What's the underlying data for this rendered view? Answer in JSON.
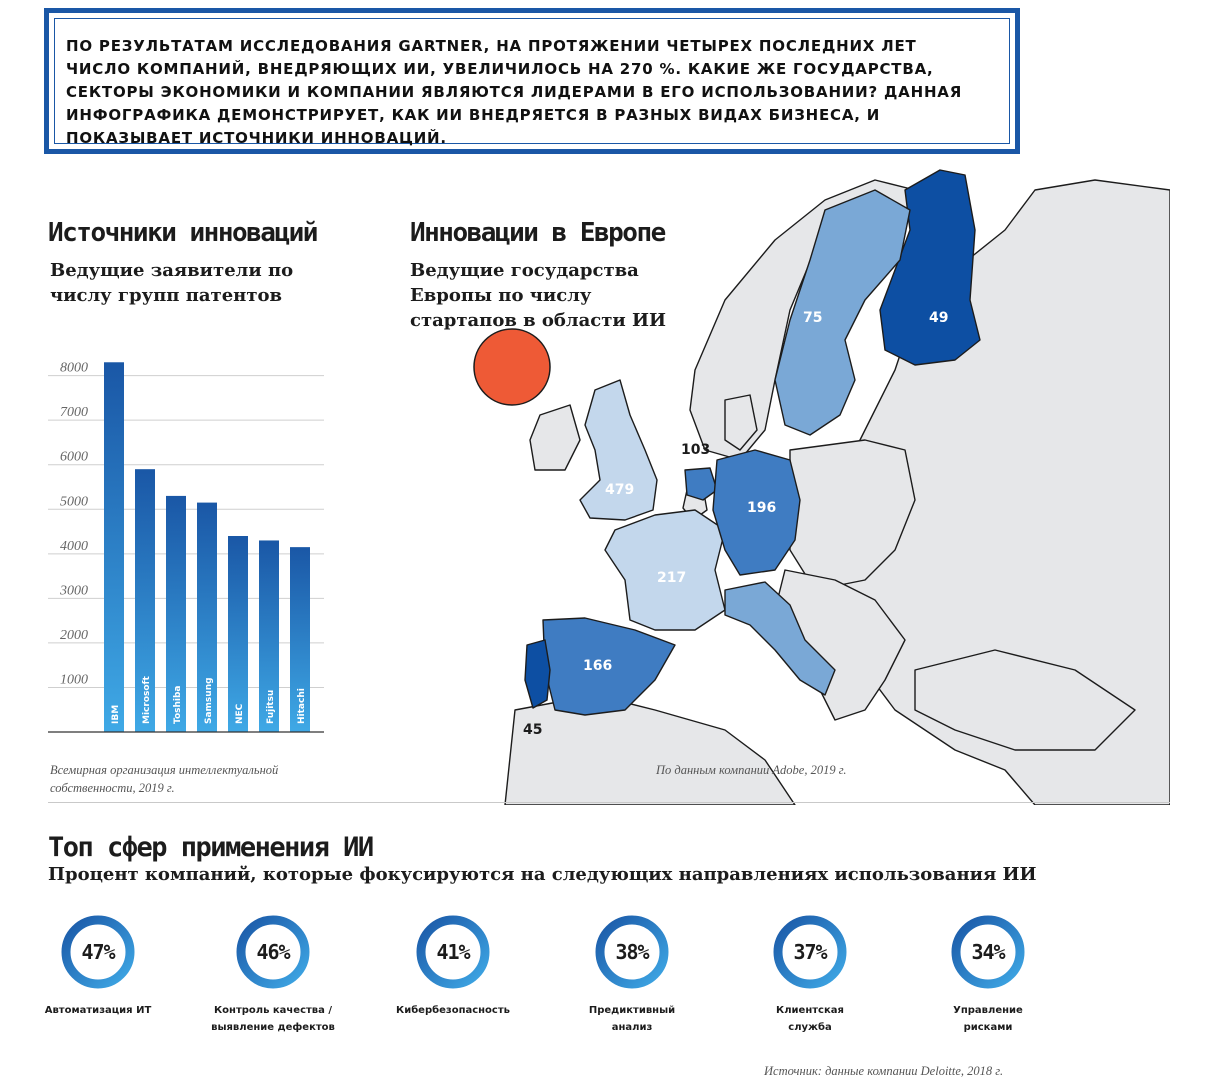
{
  "intro": {
    "text": "ПО РЕЗУЛЬТАТАМ ИССЛЕДОВАНИЯ GARTNER, НА ПРОТЯЖЕНИИ ЧЕТЫРЕХ ПОСЛЕДНИХ ЛЕТ ЧИСЛО КОМПАНИЙ, ВНЕДРЯЮЩИХ ИИ, УВЕЛИЧИЛОСЬ НА 270 %. КАКИЕ ЖЕ ГОСУДАРСТВА, СЕКТОРЫ ЭКОНОМИКИ И КОМПАНИИ ЯВЛЯЮТСЯ ЛИДЕРАМИ В ЕГО ИСПОЛЬЗОВАНИИ? ДАННАЯ ИНФОГРАФИКА ДЕМОНСТРИРУЕТ, КАК ИИ ВНЕДРЯЕТСЯ В РАЗНЫХ ВИДАХ БИЗНЕСА, И ПОКАЗЫВАЕТ ИСТОЧНИКИ ИННОВАЦИЙ."
  },
  "sources": {
    "title": "Источники инноваций",
    "subtitle": "Ведущие заявители по числу групп патентов",
    "source": "Всемирная организация интеллектуальной собственности, 2019 г."
  },
  "europe": {
    "title": "Инновации в Европе",
    "subtitle": "Ведущие государства Европы по числу стартапов в области ИИ",
    "source": "По данным компании Adobe, 2019 г.",
    "countries": [
      {
        "name": "Великобритания",
        "value": "479"
      },
      {
        "name": "Франция",
        "value": "217"
      },
      {
        "name": "Германия",
        "value": "196"
      },
      {
        "name": "Испания",
        "value": "166"
      },
      {
        "name": "Нидерланды",
        "value": "103"
      },
      {
        "name": "Швеция",
        "value": "75"
      },
      {
        "name": "Финляндия",
        "value": "49"
      },
      {
        "name": "Португалия",
        "value": "45"
      }
    ]
  },
  "top": {
    "title": "Топ сфер применения ИИ",
    "subtitle": "Процент компаний, которые фокусируются на следующих направлениях использования ИИ",
    "source": "Источник: данные компании Deloitte, 2018 г.",
    "items": [
      {
        "pct": "47%",
        "value": 47,
        "line1": "Автоматизация ИТ",
        "line2": ""
      },
      {
        "pct": "46%",
        "value": 46,
        "line1": "Контроль качества /",
        "line2": "выявление дефектов"
      },
      {
        "pct": "41%",
        "value": 41,
        "line1": "Кибербезопасность",
        "line2": ""
      },
      {
        "pct": "38%",
        "value": 38,
        "line1": "Предиктивный",
        "line2": "анализ"
      },
      {
        "pct": "37%",
        "value": 37,
        "line1": "Клиентская",
        "line2": "служба"
      },
      {
        "pct": "34%",
        "value": 34,
        "line1": "Управление",
        "line2": "рисками"
      }
    ]
  },
  "chart_data": {
    "type": "bar",
    "categories": [
      "IBM",
      "Microsoft",
      "Toshiba",
      "Samsung",
      "NEC",
      "Fujitsu",
      "Hitachi"
    ],
    "values": [
      8300,
      5900,
      5300,
      5150,
      4400,
      4300,
      4150
    ],
    "yticks": [
      "1000",
      "2000",
      "3000",
      "4000",
      "5000",
      "6000",
      "7000",
      "8000"
    ],
    "ylim": [
      0,
      8800
    ],
    "colors": {
      "bar_top": "#1a57a6",
      "bar_bottom": "#3fa9e6"
    }
  },
  "colors": {
    "frame": "#1a57a6",
    "dark": "#0d4fa3",
    "mid": "#3f7cc2",
    "light": "#7aa8d6",
    "pale": "#c3d7ec",
    "land": "#e6e7e9",
    "ocean": "#ffffff",
    "marker": "#ee5a36"
  }
}
